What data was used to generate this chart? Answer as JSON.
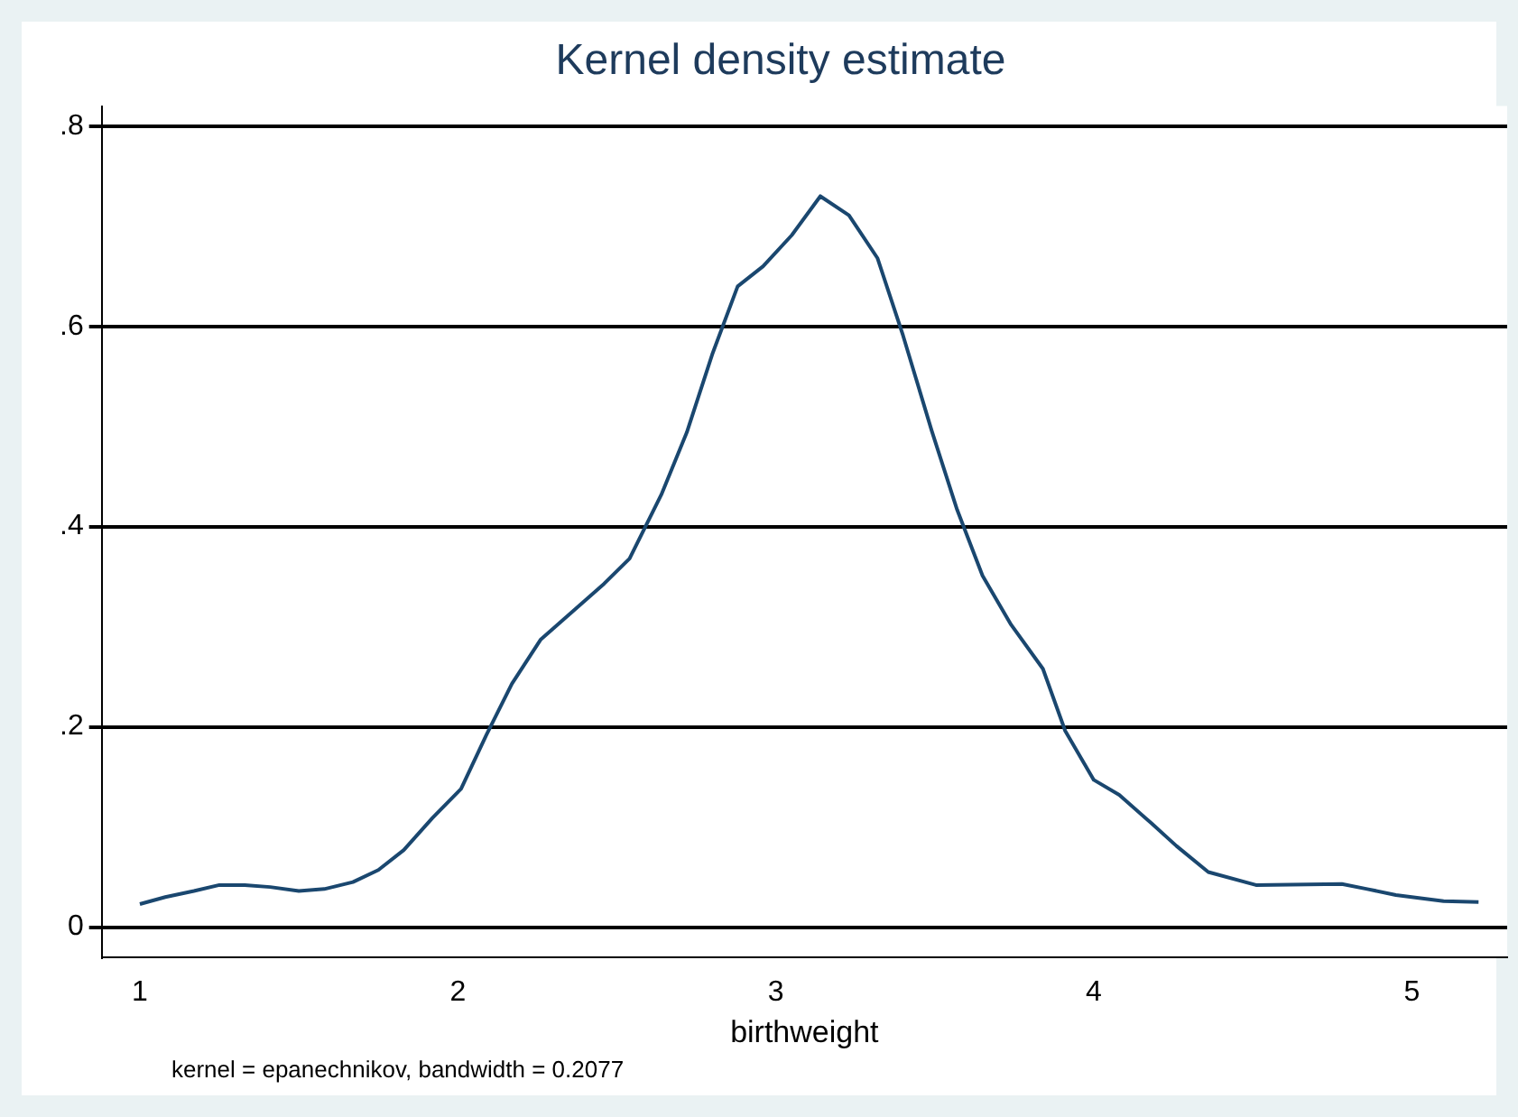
{
  "chart_data": {
    "type": "line",
    "title": "Kernel density estimate",
    "xlabel": "birthweight",
    "annotations": [
      "kernel = epanechnikov, bandwidth = 0.2077"
    ],
    "x": [
      1.0,
      1.08,
      1.17,
      1.25,
      1.33,
      1.41,
      1.5,
      1.58,
      1.67,
      1.75,
      1.83,
      1.92,
      2.01,
      2.09,
      2.17,
      2.26,
      2.36,
      2.46,
      2.54,
      2.64,
      2.72,
      2.8,
      2.88,
      2.96,
      3.05,
      3.14,
      3.23,
      3.32,
      3.4,
      3.49,
      3.57,
      3.65,
      3.74,
      3.84,
      3.91,
      4.0,
      4.08,
      4.18,
      4.26,
      4.36,
      4.51,
      4.78,
      4.86,
      4.95,
      5.1,
      5.21
    ],
    "series": [
      {
        "color": "#1a476f",
        "values": [
          0.023,
          0.03,
          0.036,
          0.042,
          0.042,
          0.04,
          0.036,
          0.038,
          0.045,
          0.057,
          0.077,
          0.109,
          0.138,
          0.192,
          0.243,
          0.287,
          0.315,
          0.343,
          0.368,
          0.432,
          0.494,
          0.572,
          0.64,
          0.66,
          0.691,
          0.73,
          0.711,
          0.668,
          0.591,
          0.496,
          0.417,
          0.351,
          0.302,
          0.258,
          0.196,
          0.147,
          0.132,
          0.104,
          0.081,
          0.055,
          0.042,
          0.043,
          0.038,
          0.032,
          0.026,
          0.025
        ]
      }
    ],
    "xlim": [
      0.88,
      5.3
    ],
    "xticks": [
      1,
      2,
      3,
      4,
      5
    ],
    "ylim": [
      -0.03,
      0.82
    ],
    "yticks": [
      0,
      {
        "value": 0.2,
        "label": ".2"
      },
      {
        "value": 0.4,
        "label": ".4"
      },
      {
        "value": 0.6,
        "label": ".6"
      },
      {
        "value": 0.8,
        "label": ".8"
      }
    ],
    "grid": "y",
    "marker": "none",
    "line_style": "solid",
    "legend": false
  }
}
